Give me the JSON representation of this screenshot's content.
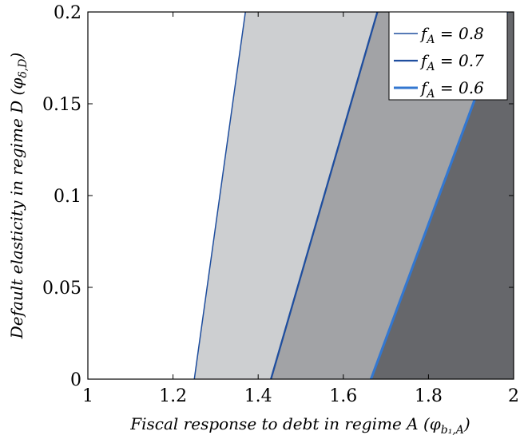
{
  "chart_data": {
    "type": "area",
    "xlabel": "Fiscal response to debt in regime A (φ",
    "xlabel_sub": "b₁,A",
    "xlabel_close": ")",
    "ylabel": "Default elasticity in regime D (φ",
    "ylabel_sub": "δ,D",
    "ylabel_close": ")",
    "xlim": [
      1,
      2
    ],
    "ylim": [
      0,
      0.2
    ],
    "xticks": [
      "1",
      "1.2",
      "1.4",
      "1.6",
      "1.8",
      "2"
    ],
    "yticks": [
      "0",
      "0.05",
      "0.1",
      "0.15",
      "0.2"
    ],
    "grid": false,
    "legend_position": "top-right",
    "series": [
      {
        "name": "f_A = 0.8",
        "name_main": "f",
        "name_sub": "A",
        "name_rest": " = 0.8",
        "boundary": [
          [
            1.25,
            0
          ],
          [
            1.37,
            0.2
          ]
        ],
        "fill": "#cdcfd1",
        "line_color": "#1f4e9e"
      },
      {
        "name": "f_A = 0.7",
        "name_main": "f",
        "name_sub": "A",
        "name_rest": " = 0.7",
        "boundary": [
          [
            1.43,
            0
          ],
          [
            1.68,
            0.2
          ]
        ],
        "fill": "#a2a3a6",
        "line_color": "#1f4e9e"
      },
      {
        "name": "f_A = 0.6",
        "name_main": "f",
        "name_sub": "A",
        "name_rest": " = 0.6",
        "boundary": [
          [
            1.665,
            0
          ],
          [
            1.985,
            0.2
          ]
        ],
        "fill": "#66676b",
        "line_color": "#3377d0"
      }
    ]
  }
}
